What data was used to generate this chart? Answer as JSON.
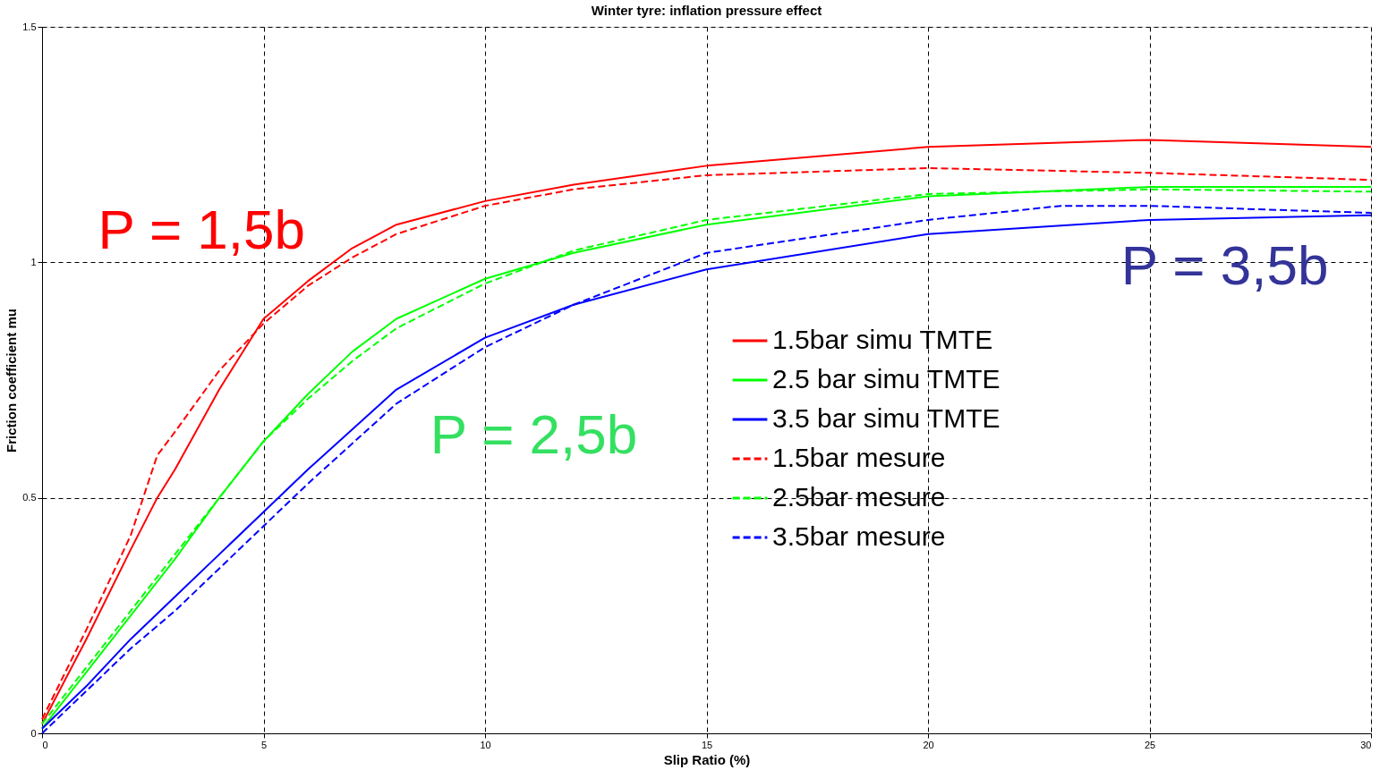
{
  "chart_data": {
    "type": "line",
    "title": "Winter tyre: inflation pressure effect",
    "xlabel": "Slip Ratio (%)",
    "ylabel": "Friction coefficient mu",
    "xlim": [
      0,
      30
    ],
    "ylim": [
      0,
      1.5
    ],
    "xticks": [
      0,
      5,
      10,
      15,
      20,
      25,
      30
    ],
    "yticks": [
      0,
      0.5,
      1,
      1.5
    ],
    "grid": true,
    "legend": "right",
    "marker": "none",
    "series": [
      {
        "name": "1.5bar simu TMTE",
        "color": "#ff0000",
        "line_style": "solid",
        "x": [
          0,
          1,
          2,
          2.6,
          3,
          4,
          5,
          6,
          7,
          8,
          10,
          12,
          15,
          20,
          25,
          30
        ],
        "values": [
          0.02,
          0.2,
          0.39,
          0.5,
          0.56,
          0.73,
          0.88,
          0.96,
          1.03,
          1.08,
          1.13,
          1.165,
          1.205,
          1.245,
          1.26,
          1.245
        ]
      },
      {
        "name": "2.5 bar simu TMTE",
        "color": "#00ff00",
        "line_style": "solid",
        "x": [
          0,
          1,
          2,
          3,
          4,
          5,
          6,
          7,
          8,
          10,
          12,
          15,
          20,
          25,
          30
        ],
        "values": [
          0.01,
          0.13,
          0.25,
          0.37,
          0.5,
          0.62,
          0.72,
          0.81,
          0.88,
          0.965,
          1.02,
          1.08,
          1.14,
          1.16,
          1.16
        ]
      },
      {
        "name": "3.5 bar simu TMTE",
        "color": "#0000ff",
        "line_style": "solid",
        "x": [
          0,
          1,
          2,
          3,
          4,
          5,
          6,
          8,
          10,
          12,
          15,
          20,
          25,
          30
        ],
        "values": [
          0.01,
          0.1,
          0.2,
          0.29,
          0.38,
          0.47,
          0.56,
          0.73,
          0.84,
          0.91,
          0.985,
          1.06,
          1.09,
          1.1
        ]
      },
      {
        "name": "1.5bar mesure",
        "color": "#ff0000",
        "line_style": "dashed",
        "x": [
          0,
          1,
          2,
          2.6,
          3,
          4,
          5,
          6,
          7,
          8,
          10,
          12,
          15,
          20,
          25,
          30
        ],
        "values": [
          0.03,
          0.22,
          0.42,
          0.59,
          0.64,
          0.77,
          0.87,
          0.95,
          1.01,
          1.06,
          1.12,
          1.155,
          1.185,
          1.2,
          1.19,
          1.175
        ]
      },
      {
        "name": "2.5bar mesure",
        "color": "#00ff00",
        "line_style": "dashed",
        "x": [
          0,
          1,
          2,
          3,
          4,
          5,
          6,
          7,
          8,
          10,
          12,
          15,
          20,
          25,
          30
        ],
        "values": [
          0.02,
          0.14,
          0.26,
          0.38,
          0.5,
          0.62,
          0.71,
          0.79,
          0.86,
          0.955,
          1.025,
          1.09,
          1.145,
          1.155,
          1.15
        ]
      },
      {
        "name": "3.5bar mesure",
        "color": "#0000ff",
        "line_style": "dashed",
        "x": [
          0,
          1,
          2,
          3,
          4,
          5,
          6,
          8,
          10,
          12,
          15,
          20,
          23,
          25,
          30
        ],
        "values": [
          0.0,
          0.09,
          0.18,
          0.26,
          0.35,
          0.44,
          0.53,
          0.7,
          0.82,
          0.91,
          1.02,
          1.09,
          1.12,
          1.12,
          1.105
        ]
      }
    ],
    "annotations": [
      "P = 1,5b",
      "P = 2,5b",
      "P = 3,5b"
    ]
  }
}
